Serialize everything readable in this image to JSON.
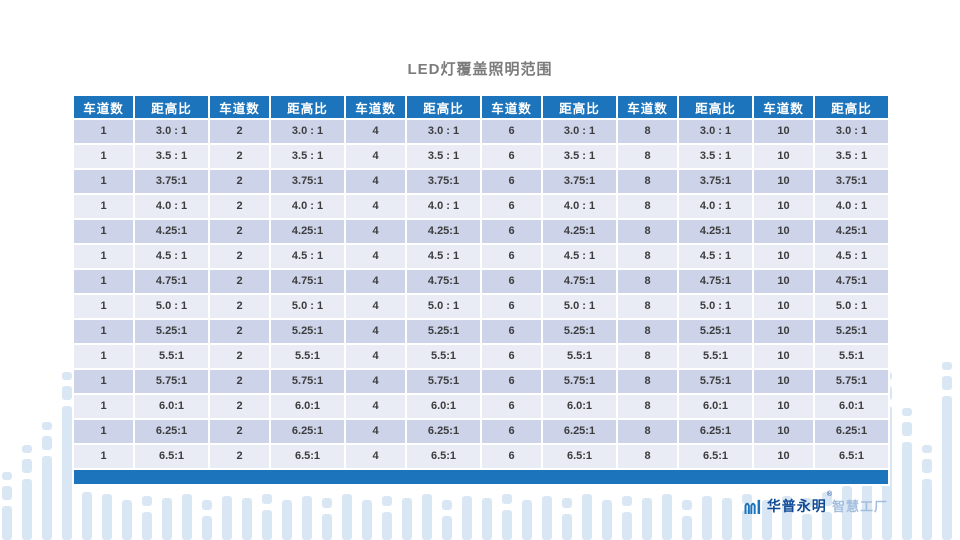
{
  "slide": {
    "title": "LED灯覆盖照明范围"
  },
  "chart_data": {
    "type": "table",
    "title": "LED灯覆盖照明范围",
    "header_pair": [
      "车道数",
      "距高比"
    ],
    "columns_repeat": 6,
    "lanes": [
      "1",
      "2",
      "4",
      "6",
      "8",
      "10"
    ],
    "ratios": [
      "3.0 : 1",
      "3.5 : 1",
      "3.75:1",
      "4.0 : 1",
      "4.25:1",
      "4.5 : 1",
      "4.75:1",
      "5.0 : 1",
      "5.25:1",
      "5.5:1",
      "5.75:1",
      "6.0:1",
      "6.25:1",
      "6.5:1"
    ]
  },
  "logo": {
    "brand": "华普永明",
    "registered_mark": "®",
    "suffix": "智慧工厂"
  },
  "colors": {
    "header_blue": "#1C75BC",
    "row_dark": "#CDD4E9",
    "row_light": "#E9EBF5",
    "footer_blue": "#1C75BC",
    "decoration_blue": "#D9E6F3",
    "title_gray": "#7B7B7B",
    "logo_dark_blue": "#114B97",
    "logo_light_blue": "#A3BEDE"
  }
}
